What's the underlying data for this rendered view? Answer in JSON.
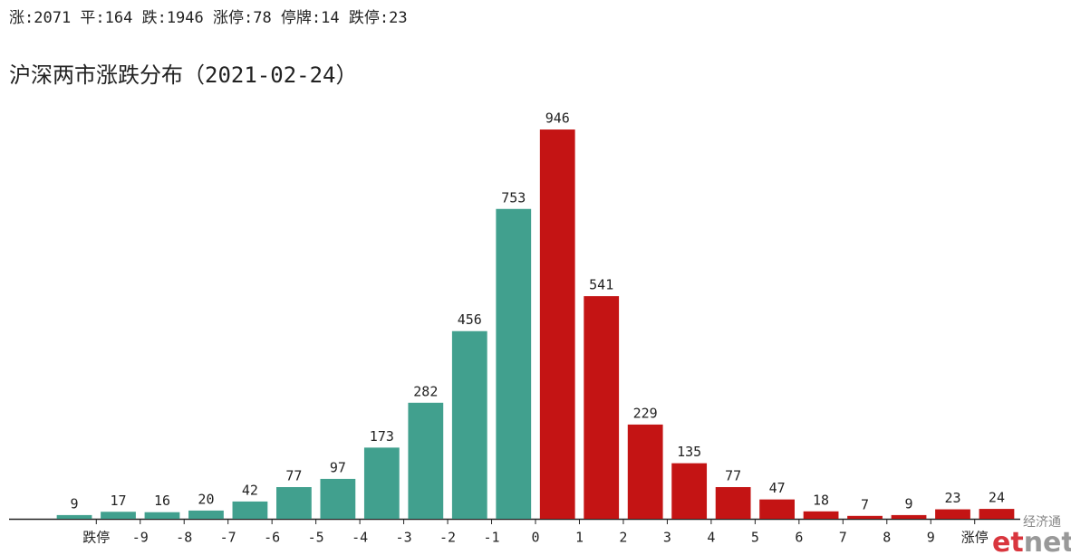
{
  "stats": "涨:2071 平:164 跌:1946 涨停:78 停牌:14 跌停:23",
  "chart_data": {
    "type": "bar",
    "title": "沪深两市涨跌分布（2021-02-24）",
    "series": [
      {
        "color": "#41a08e",
        "values": [
          9,
          17,
          16,
          20,
          42,
          77,
          97,
          173,
          282,
          456,
          753,
          null,
          null,
          null,
          null,
          null,
          null,
          null,
          null,
          null,
          null,
          null
        ]
      },
      {
        "color": "#c41414",
        "values": [
          null,
          null,
          null,
          null,
          null,
          null,
          null,
          null,
          null,
          null,
          null,
          946,
          541,
          229,
          135,
          77,
          47,
          18,
          7,
          9,
          23,
          24
        ]
      }
    ],
    "xtick_labels": [
      "跌停",
      "-9",
      "-8",
      "-7",
      "-6",
      "-5",
      "-4",
      "-3",
      "-2",
      "-1",
      "0",
      "1",
      "2",
      "3",
      "4",
      "5",
      "6",
      "7",
      "8",
      "9",
      "涨停"
    ],
    "ylim": [
      0,
      1000
    ]
  },
  "watermark": {
    "name": "经济通",
    "logo_a": "et",
    "logo_b": "net"
  }
}
